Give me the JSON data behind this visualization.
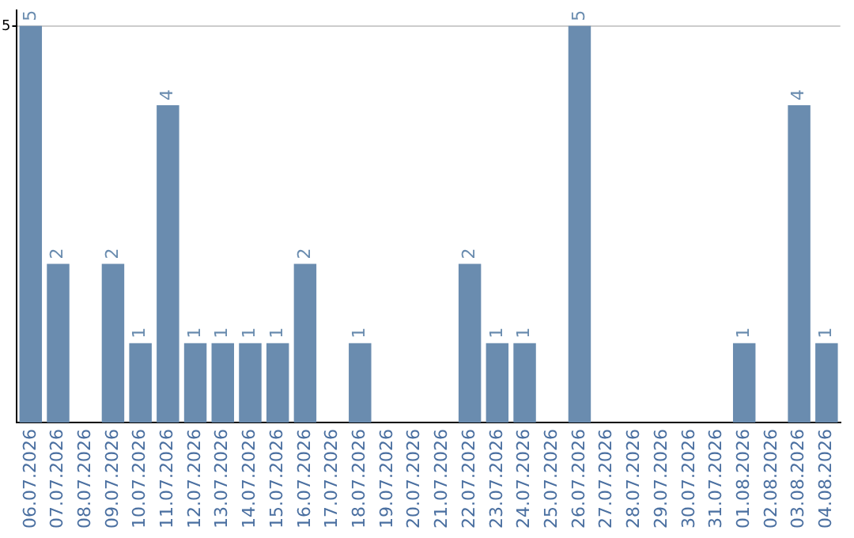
{
  "chart_data": {
    "type": "bar",
    "categories": [
      "06.07.2026",
      "07.07.2026",
      "08.07.2026",
      "09.07.2026",
      "10.07.2026",
      "11.07.2026",
      "12.07.2026",
      "13.07.2026",
      "14.07.2026",
      "15.07.2026",
      "16.07.2026",
      "17.07.2026",
      "18.07.2026",
      "19.07.2026",
      "20.07.2026",
      "21.07.2026",
      "22.07.2026",
      "23.07.2026",
      "24.07.2026",
      "25.07.2026",
      "26.07.2026",
      "27.07.2026",
      "28.07.2026",
      "29.07.2026",
      "30.07.2026",
      "31.07.2026",
      "01.08.2026",
      "02.08.2026",
      "03.08.2026",
      "04.08.2026"
    ],
    "values": [
      5,
      2,
      0,
      2,
      1,
      4,
      1,
      1,
      1,
      1,
      2,
      0,
      1,
      0,
      0,
      0,
      2,
      1,
      1,
      0,
      5,
      0,
      0,
      0,
      0,
      0,
      1,
      0,
      4,
      1
    ],
    "value_labels": [
      "5",
      "2",
      null,
      "2",
      "1",
      "4",
      "1",
      "1",
      "1",
      "1",
      "2",
      null,
      "1",
      null,
      null,
      null,
      "2",
      "1",
      "1",
      null,
      "5",
      null,
      null,
      null,
      null,
      null,
      "1",
      null,
      "4",
      "1"
    ],
    "color": "#6a8caf",
    "ylim": [
      0,
      5.2
    ],
    "yticks": [
      5
    ],
    "grid": "y",
    "legend": false
  }
}
